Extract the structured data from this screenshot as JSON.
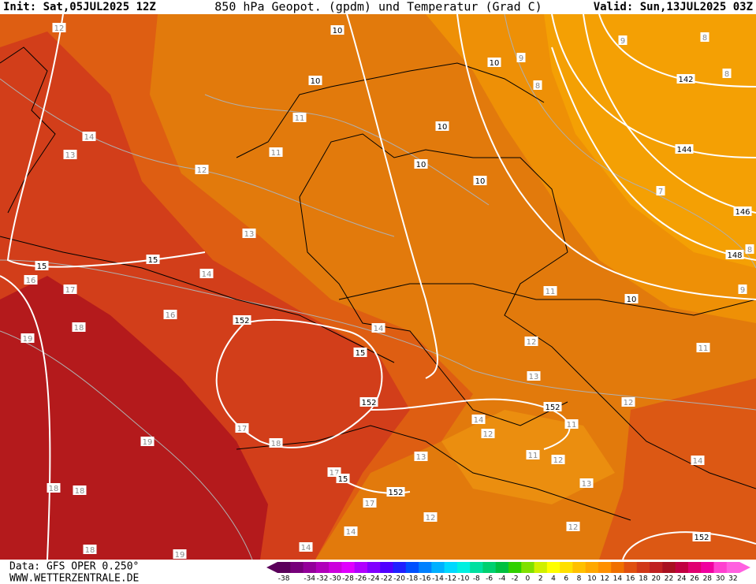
{
  "header": {
    "init": "Init: Sat,05JUL2025 12Z",
    "title": "850 hPa Geopot. (gpdm) und Temperatur (Grad C)",
    "valid": "Valid: Sun,13JUL2025 03Z"
  },
  "footer": {
    "data": "Data: GFS OPER 0.250°",
    "site": "WWW.WETTERZENTRALE.DE"
  },
  "colorbar": {
    "labels": [
      -38,
      -34,
      -32,
      -30,
      -28,
      -26,
      -24,
      -22,
      -20,
      -18,
      -16,
      -14,
      -12,
      -10,
      -8,
      -6,
      -4,
      -2,
      0,
      2,
      4,
      6,
      8,
      10,
      12,
      14,
      16,
      18,
      20,
      22,
      24,
      26,
      28,
      30,
      32
    ]
  },
  "map": {
    "temperature_labels": [
      12,
      14,
      13,
      12,
      11,
      11,
      13,
      14,
      16,
      17,
      18,
      19,
      16,
      14,
      11,
      12,
      13,
      11,
      12,
      14,
      12,
      11,
      11,
      12,
      13,
      13,
      14,
      17,
      18,
      19,
      18,
      18,
      17,
      17,
      14,
      12,
      12,
      14,
      18,
      19,
      9,
      8,
      9,
      8,
      8,
      7,
      9,
      8
    ],
    "geopotential_labels": [
      10,
      10,
      10,
      10,
      10,
      10,
      142,
      144,
      146,
      148,
      10,
      15,
      15,
      152,
      15,
      152,
      152,
      15,
      152,
      152
    ]
  }
}
